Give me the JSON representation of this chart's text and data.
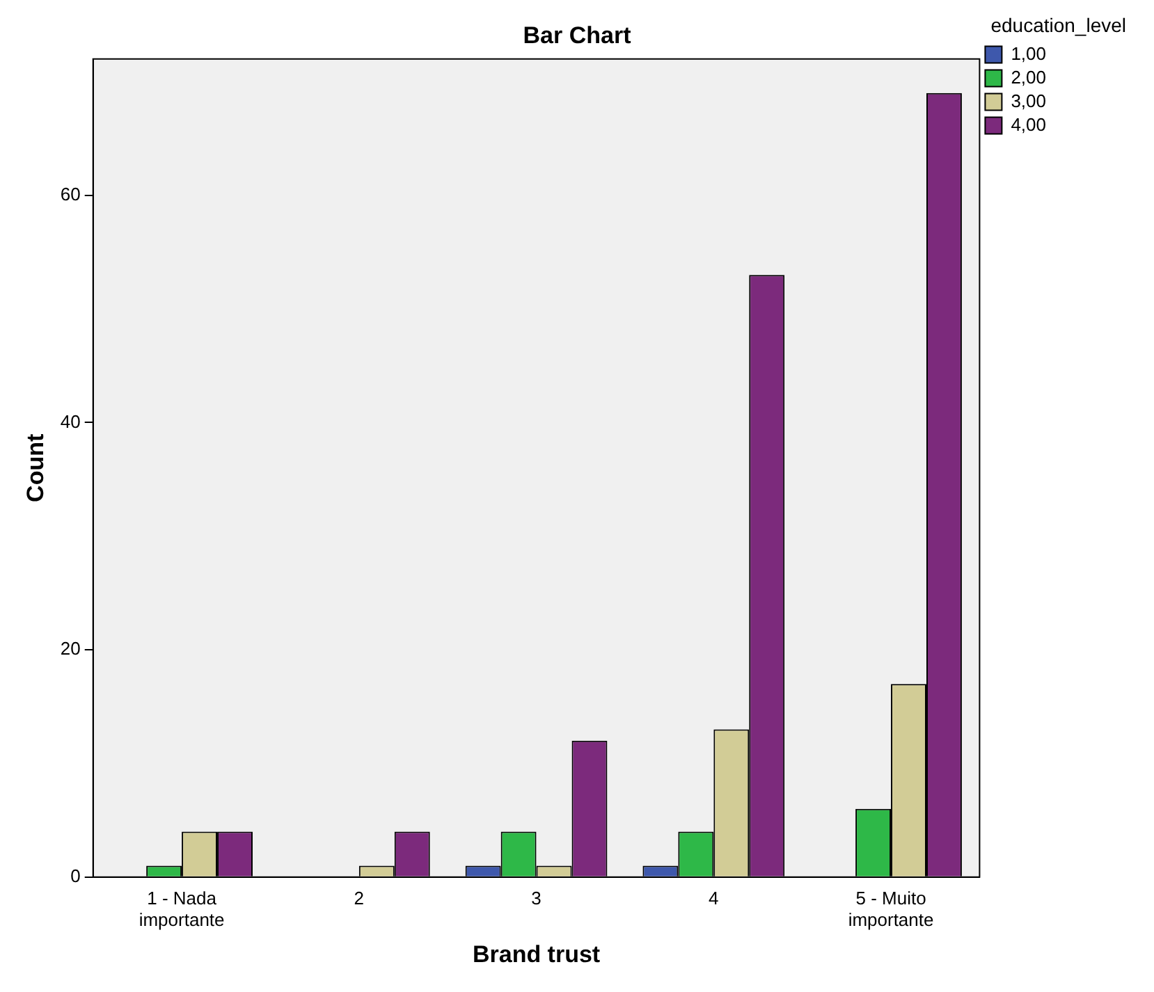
{
  "chart_data": {
    "type": "bar",
    "title": "Bar Chart",
    "xlabel": "Brand trust",
    "ylabel": "Count",
    "legend_title": "education_level",
    "categories": [
      "1 - Nada importante",
      "2",
      "3",
      "4",
      "5 - Muito importante"
    ],
    "series": [
      {
        "name": "1,00",
        "color": "#3e58ac",
        "values": [
          0,
          0,
          1,
          1,
          0
        ]
      },
      {
        "name": "2,00",
        "color": "#2eb848",
        "values": [
          1,
          0,
          4,
          4,
          6
        ]
      },
      {
        "name": "3,00",
        "color": "#d2cc96",
        "values": [
          4,
          1,
          1,
          13,
          17
        ]
      },
      {
        "name": "4,00",
        "color": "#7c2a7c",
        "values": [
          4,
          4,
          12,
          53,
          69
        ]
      }
    ],
    "ylim": [
      0,
      72
    ],
    "yticks": [
      0,
      20,
      40,
      60
    ],
    "grid": false,
    "legend": "top right"
  }
}
